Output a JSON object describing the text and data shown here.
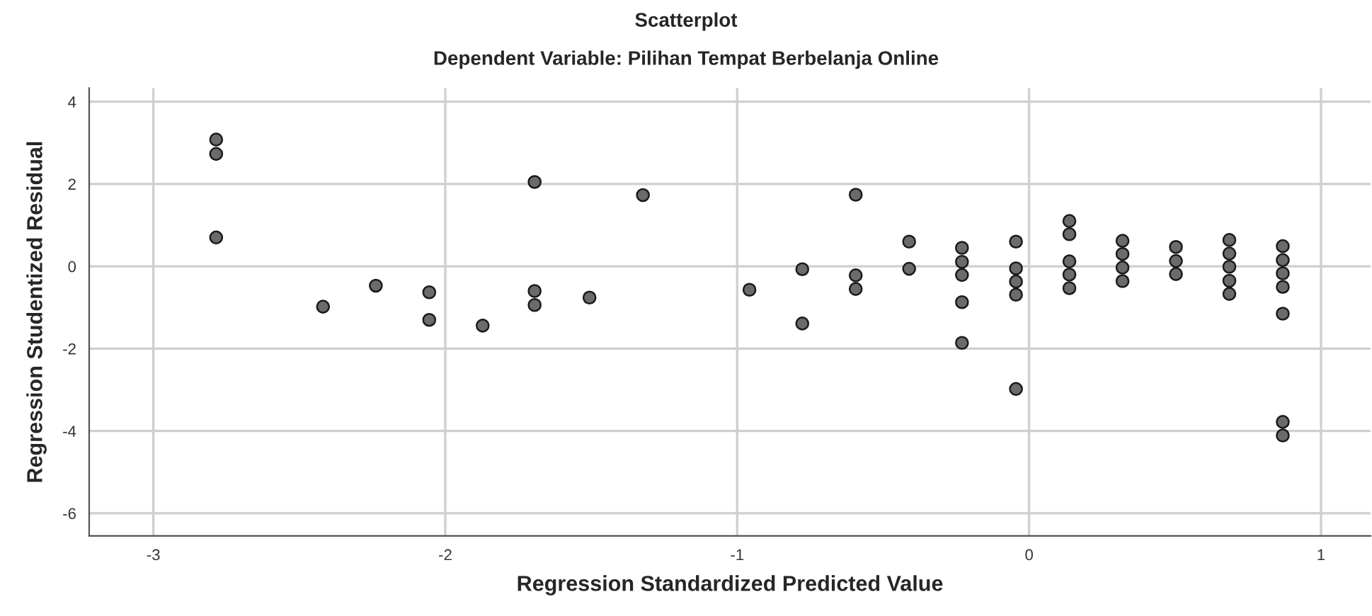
{
  "chart_data": {
    "type": "scatter",
    "title": "Scatterplot",
    "subtitle": "Dependent Variable: Pilihan Tempat Berbelanja Online",
    "xlabel": "Regression Standardized Predicted Value",
    "ylabel": "Regression Studentized Residual",
    "xlim": [
      -3.22,
      1.17
    ],
    "ylim": [
      -6.55,
      4.33
    ],
    "xticks": [
      -3,
      -2,
      -1,
      0,
      1
    ],
    "yticks": [
      -6,
      -4,
      -2,
      0,
      2,
      4
    ],
    "grid": true,
    "marker": "circle",
    "series": [
      {
        "color": "#6b6b6b",
        "x": [
          -2.785,
          -2.785,
          -2.785,
          -2.419,
          -2.238,
          -2.055,
          -2.055,
          -1.872,
          -1.694,
          -1.694,
          -1.694,
          -1.506,
          -1.323,
          -0.958,
          -0.777,
          -0.777,
          -0.594,
          -0.594,
          -0.594,
          -0.411,
          -0.411,
          -0.23,
          -0.23,
          -0.23,
          -0.23,
          -0.23,
          -0.045,
          -0.045,
          -0.045,
          -0.045,
          -0.045,
          0.138,
          0.138,
          0.138,
          0.138,
          0.138,
          0.32,
          0.32,
          0.32,
          0.32,
          0.503,
          0.503,
          0.503,
          0.686,
          0.686,
          0.686,
          0.686,
          0.686,
          0.869,
          0.869,
          0.869,
          0.869,
          0.869,
          0.869,
          0.869
        ],
        "values": [
          3.08,
          2.73,
          0.7,
          -0.98,
          -0.47,
          -0.63,
          -1.3,
          -1.44,
          2.05,
          -0.6,
          -0.94,
          -0.76,
          1.73,
          -0.57,
          -0.07,
          -1.39,
          1.74,
          -0.22,
          -0.55,
          0.6,
          -0.06,
          0.45,
          0.11,
          -0.21,
          -0.87,
          -1.86,
          0.6,
          -0.05,
          -0.37,
          -0.69,
          -2.98,
          1.1,
          0.78,
          0.12,
          -0.2,
          -0.53,
          0.62,
          0.3,
          -0.03,
          -0.36,
          0.47,
          0.13,
          -0.19,
          0.64,
          0.31,
          -0.01,
          -0.35,
          -0.67,
          0.49,
          0.15,
          -0.17,
          -0.5,
          -1.15,
          -3.78,
          -4.11
        ]
      }
    ]
  }
}
